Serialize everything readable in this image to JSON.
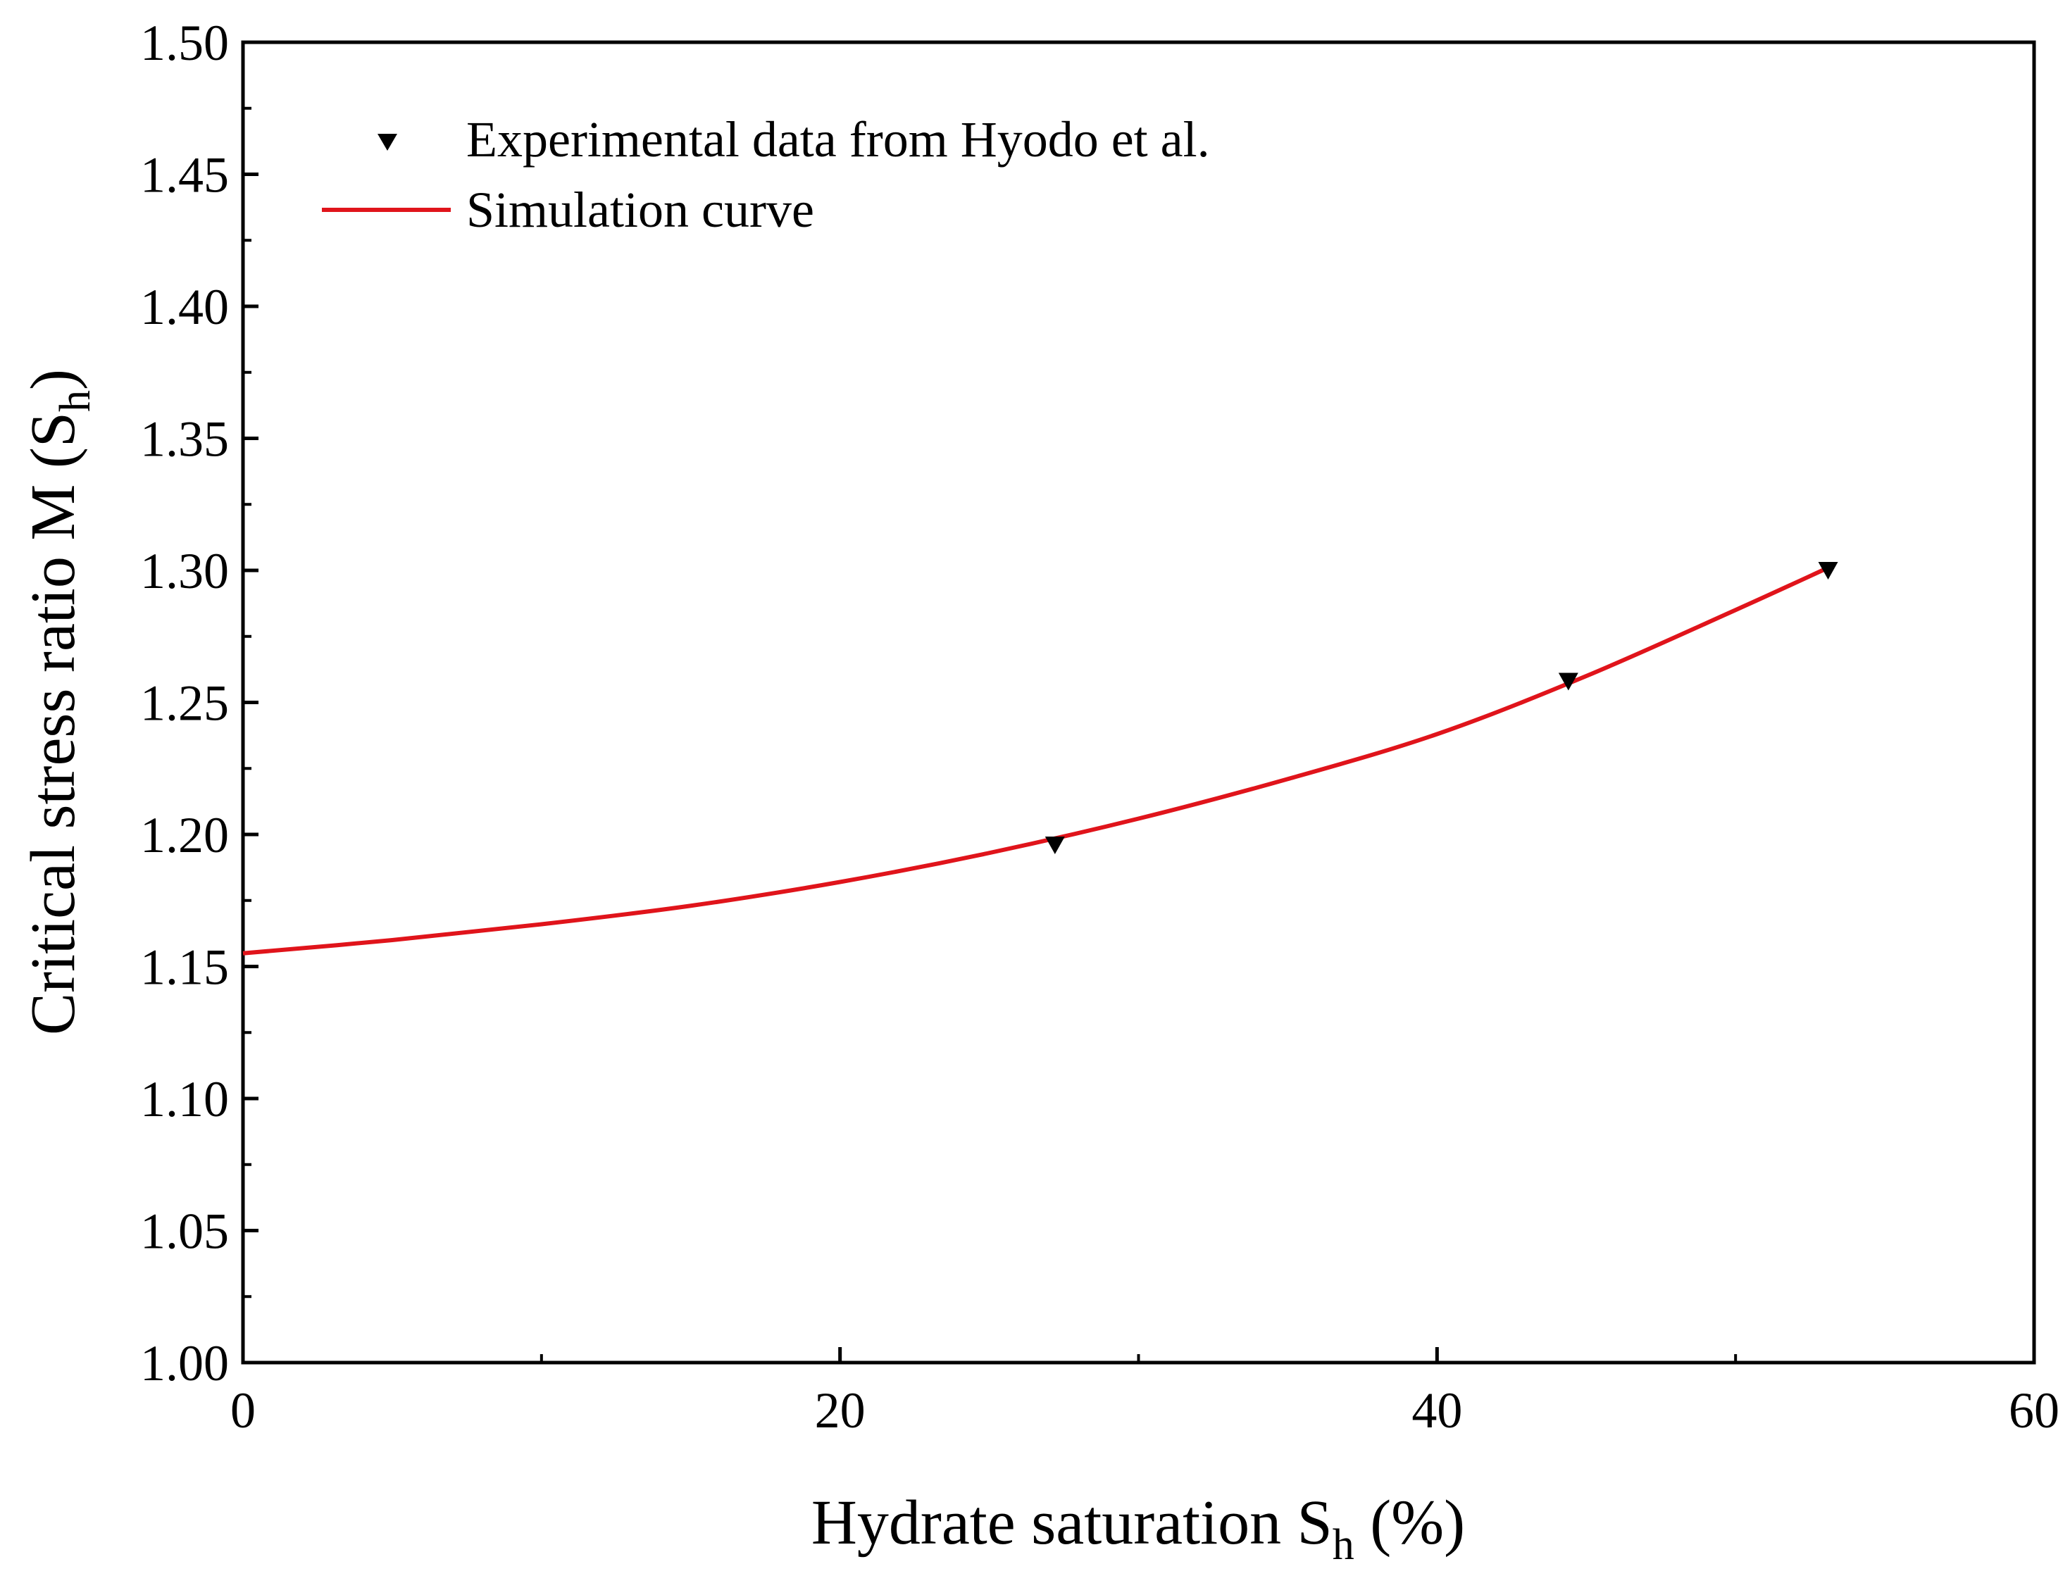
{
  "chart_data": {
    "type": "line",
    "title": "",
    "xlabel": {
      "main": "Hydrate saturation S",
      "sub": "h",
      "suffix": " (%)"
    },
    "ylabel": {
      "main": "Critical stress ratio M (S",
      "sub": "h",
      "suffix": ")"
    },
    "xlim": [
      0,
      60
    ],
    "ylim": [
      1.0,
      1.5
    ],
    "x_ticks": [
      0,
      20,
      40,
      60
    ],
    "x_tick_labels": [
      "0",
      "20",
      "40",
      "60"
    ],
    "x_minor_ticks": [
      10,
      30,
      50
    ],
    "y_ticks": [
      1.0,
      1.05,
      1.1,
      1.15,
      1.2,
      1.25,
      1.3,
      1.35,
      1.4,
      1.45,
      1.5
    ],
    "y_tick_labels": [
      "1.00",
      "1.05",
      "1.10",
      "1.15",
      "1.20",
      "1.25",
      "1.30",
      "1.35",
      "1.40",
      "1.45",
      "1.50"
    ],
    "y_minor_ticks": [
      1.025,
      1.075,
      1.125,
      1.175,
      1.225,
      1.275,
      1.325,
      1.375,
      1.425,
      1.475
    ],
    "grid": false,
    "legend_position": "top-left",
    "series": [
      {
        "name": "Experimental data from Hyodo et al.",
        "kind": "scatter",
        "marker": "down-triangle",
        "color": "#000000",
        "x": [
          27.2,
          44.4,
          53.1
        ],
        "y": [
          1.196,
          1.258,
          1.3
        ]
      },
      {
        "name": "Simulation curve",
        "kind": "line",
        "color": "#e0141b",
        "x": [
          0,
          5,
          10,
          15,
          20,
          25,
          30,
          35,
          40,
          45,
          50,
          53.1
        ],
        "y": [
          1.155,
          1.16,
          1.166,
          1.173,
          1.182,
          1.193,
          1.206,
          1.221,
          1.238,
          1.26,
          1.285,
          1.301
        ]
      }
    ]
  }
}
